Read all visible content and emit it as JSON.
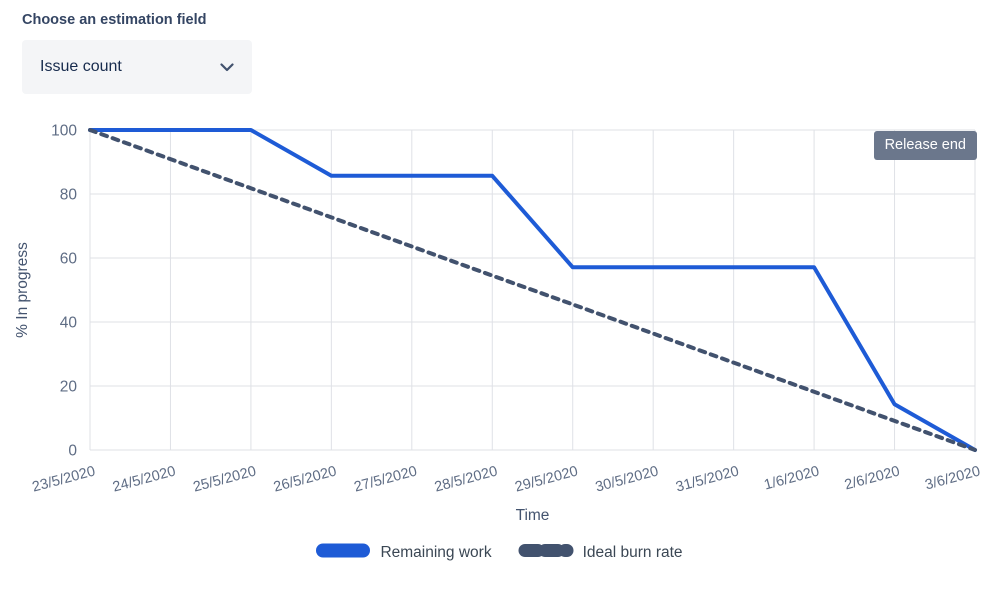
{
  "estimation_field": {
    "label": "Choose an estimation field",
    "selected": "Issue count"
  },
  "icons": {
    "dropdown": "chevron-down-icon"
  },
  "release_annotation": "Release end",
  "colors": {
    "remaining_work": "#1E5BD6",
    "ideal_burn_rate": "#42526E",
    "release_badge": "#6B778C",
    "gridline": "#DFE1E6",
    "tick_text": "#5E6C84",
    "axis_title_text": "#44546F"
  },
  "chart_data": {
    "type": "line",
    "title": "",
    "x": [
      "23/5/2020",
      "24/5/2020",
      "25/5/2020",
      "26/5/2020",
      "27/5/2020",
      "28/5/2020",
      "29/5/2020",
      "30/5/2020",
      "31/5/2020",
      "1/6/2020",
      "2/6/2020",
      "3/6/2020"
    ],
    "series": [
      {
        "name": "Remaining work",
        "color": "#1E5BD6",
        "style": "solid",
        "values": [
          100,
          100,
          100,
          85.7,
          85.7,
          85.7,
          57.1,
          57.1,
          57.1,
          57.1,
          14.3,
          0
        ]
      },
      {
        "name": "Ideal burn rate",
        "color": "#42526E",
        "style": "dashed",
        "values": [
          100,
          90.9,
          81.8,
          72.7,
          63.6,
          54.5,
          45.5,
          36.4,
          27.3,
          18.2,
          9.1,
          0
        ]
      }
    ],
    "xlabel": "Time",
    "ylabel": "% In progress",
    "ylim": [
      0,
      100
    ],
    "yticks": [
      0,
      20,
      40,
      60,
      80,
      100
    ],
    "grid": true,
    "legend_position": "bottom",
    "annotations": [
      {
        "text": "Release end",
        "x": "3/6/2020",
        "position": "top-right"
      }
    ]
  }
}
